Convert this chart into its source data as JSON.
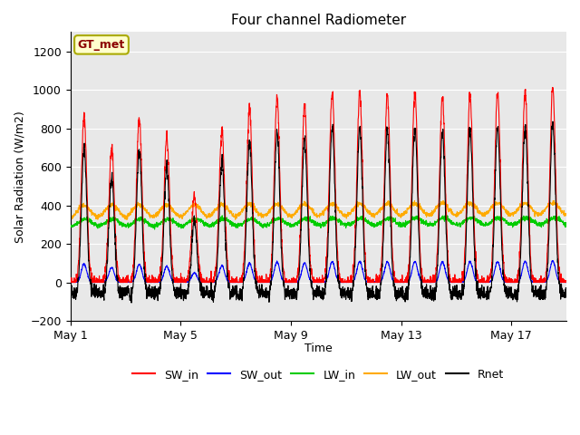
{
  "title": "Four channel Radiometer",
  "xlabel": "Time",
  "ylabel": "Solar Radiation (W/m2)",
  "ylim": [
    -200,
    1300
  ],
  "yticks": [
    -200,
    0,
    200,
    400,
    600,
    800,
    1000,
    1200
  ],
  "xtick_labels": [
    "May 1",
    "May 5",
    "May 9",
    "May 13",
    "May 17"
  ],
  "xtick_positions": [
    0,
    4,
    8,
    12,
    16
  ],
  "legend_labels": [
    "SW_in",
    "SW_out",
    "LW_in",
    "LW_out",
    "Rnet"
  ],
  "colors": {
    "SW_in": "#ff0000",
    "SW_out": "#0000ff",
    "LW_in": "#00cc00",
    "LW_out": "#ffaa00",
    "Rnet": "#000000"
  },
  "annotation_text": "GT_met",
  "annotation_color": "#8B0000",
  "annotation_bg": "#ffffcc",
  "annotation_edgecolor": "#aaaa00",
  "plot_bg_color": "#e8e8e8",
  "title_fontsize": 11,
  "axis_label_fontsize": 9,
  "tick_fontsize": 9,
  "legend_fontsize": 9,
  "n_days": 18,
  "pts_per_day": 144,
  "day_amps_SW": [
    860,
    700,
    850,
    760,
    450,
    790,
    900,
    960,
    920,
    990,
    990,
    975,
    985,
    965,
    975,
    985,
    995,
    1010
  ],
  "lw_in_base": 310,
  "lw_out_base": 370
}
